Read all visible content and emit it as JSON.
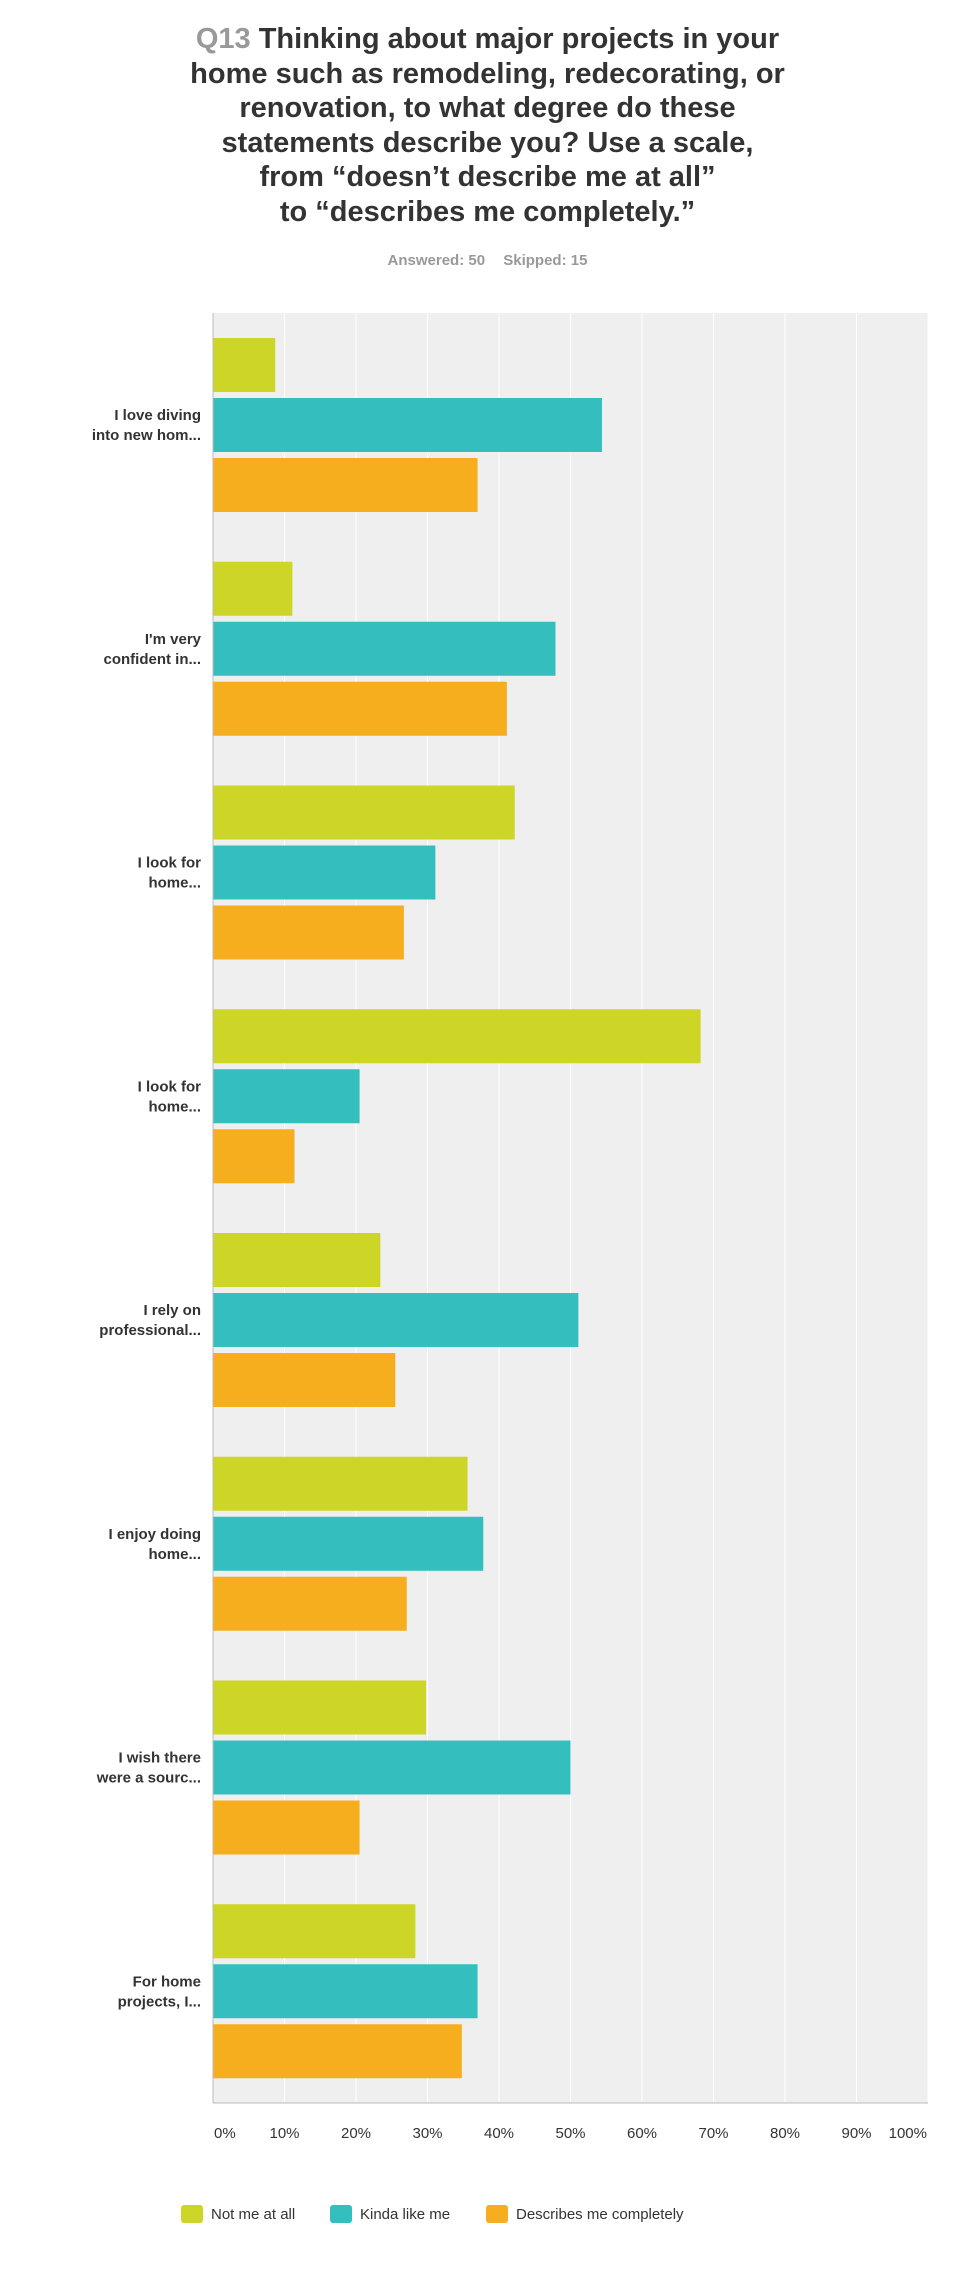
{
  "question": {
    "number": "Q13",
    "text_lines": [
      "Thinking about major projects in your",
      "home such as remodeling, redecorating, or",
      "renovation, to what degree do these",
      "statements describe you? Use a scale,",
      "from “doesn’t describe me at all”",
      "to “describes me completely.”"
    ],
    "answered": "Answered: 50",
    "skipped": "Skipped: 15"
  },
  "colors": {
    "Not me at all": "#cdd626",
    "Kinda like me": "#34bebe",
    "Describes me completely": "#f6ae1e",
    "plot_background": "#efefef",
    "gridline": "#ffffff",
    "axis": "#bbbbbb"
  },
  "chart_data": {
    "type": "bar",
    "orientation": "horizontal",
    "categories": [
      [
        "I love diving",
        "into new hom..."
      ],
      [
        "I'm very",
        "confident in..."
      ],
      [
        "I look for",
        "home..."
      ],
      [
        "I look for",
        "home..."
      ],
      [
        "I rely on",
        "professional..."
      ],
      [
        "I enjoy doing",
        "home..."
      ],
      [
        "I wish there",
        "were a sourc..."
      ],
      [
        "For home",
        "projects, I..."
      ]
    ],
    "series": [
      {
        "name": "Not me at all",
        "values": [
          8.7,
          11.1,
          42.2,
          68.2,
          23.4,
          35.6,
          29.8,
          28.3
        ]
      },
      {
        "name": "Kinda like me",
        "values": [
          54.4,
          47.9,
          31.1,
          20.5,
          51.1,
          37.8,
          50.0,
          37.0
        ]
      },
      {
        "name": "Describes me completely",
        "values": [
          37.0,
          41.1,
          26.7,
          11.4,
          25.5,
          27.1,
          20.5,
          34.8
        ]
      }
    ],
    "xlim": [
      0,
      100
    ],
    "x_ticks": [
      "0%",
      "10%",
      "20%",
      "30%",
      "40%",
      "50%",
      "60%",
      "70%",
      "80%",
      "90%",
      "100%"
    ],
    "grid": true,
    "legend_position": "bottom"
  }
}
